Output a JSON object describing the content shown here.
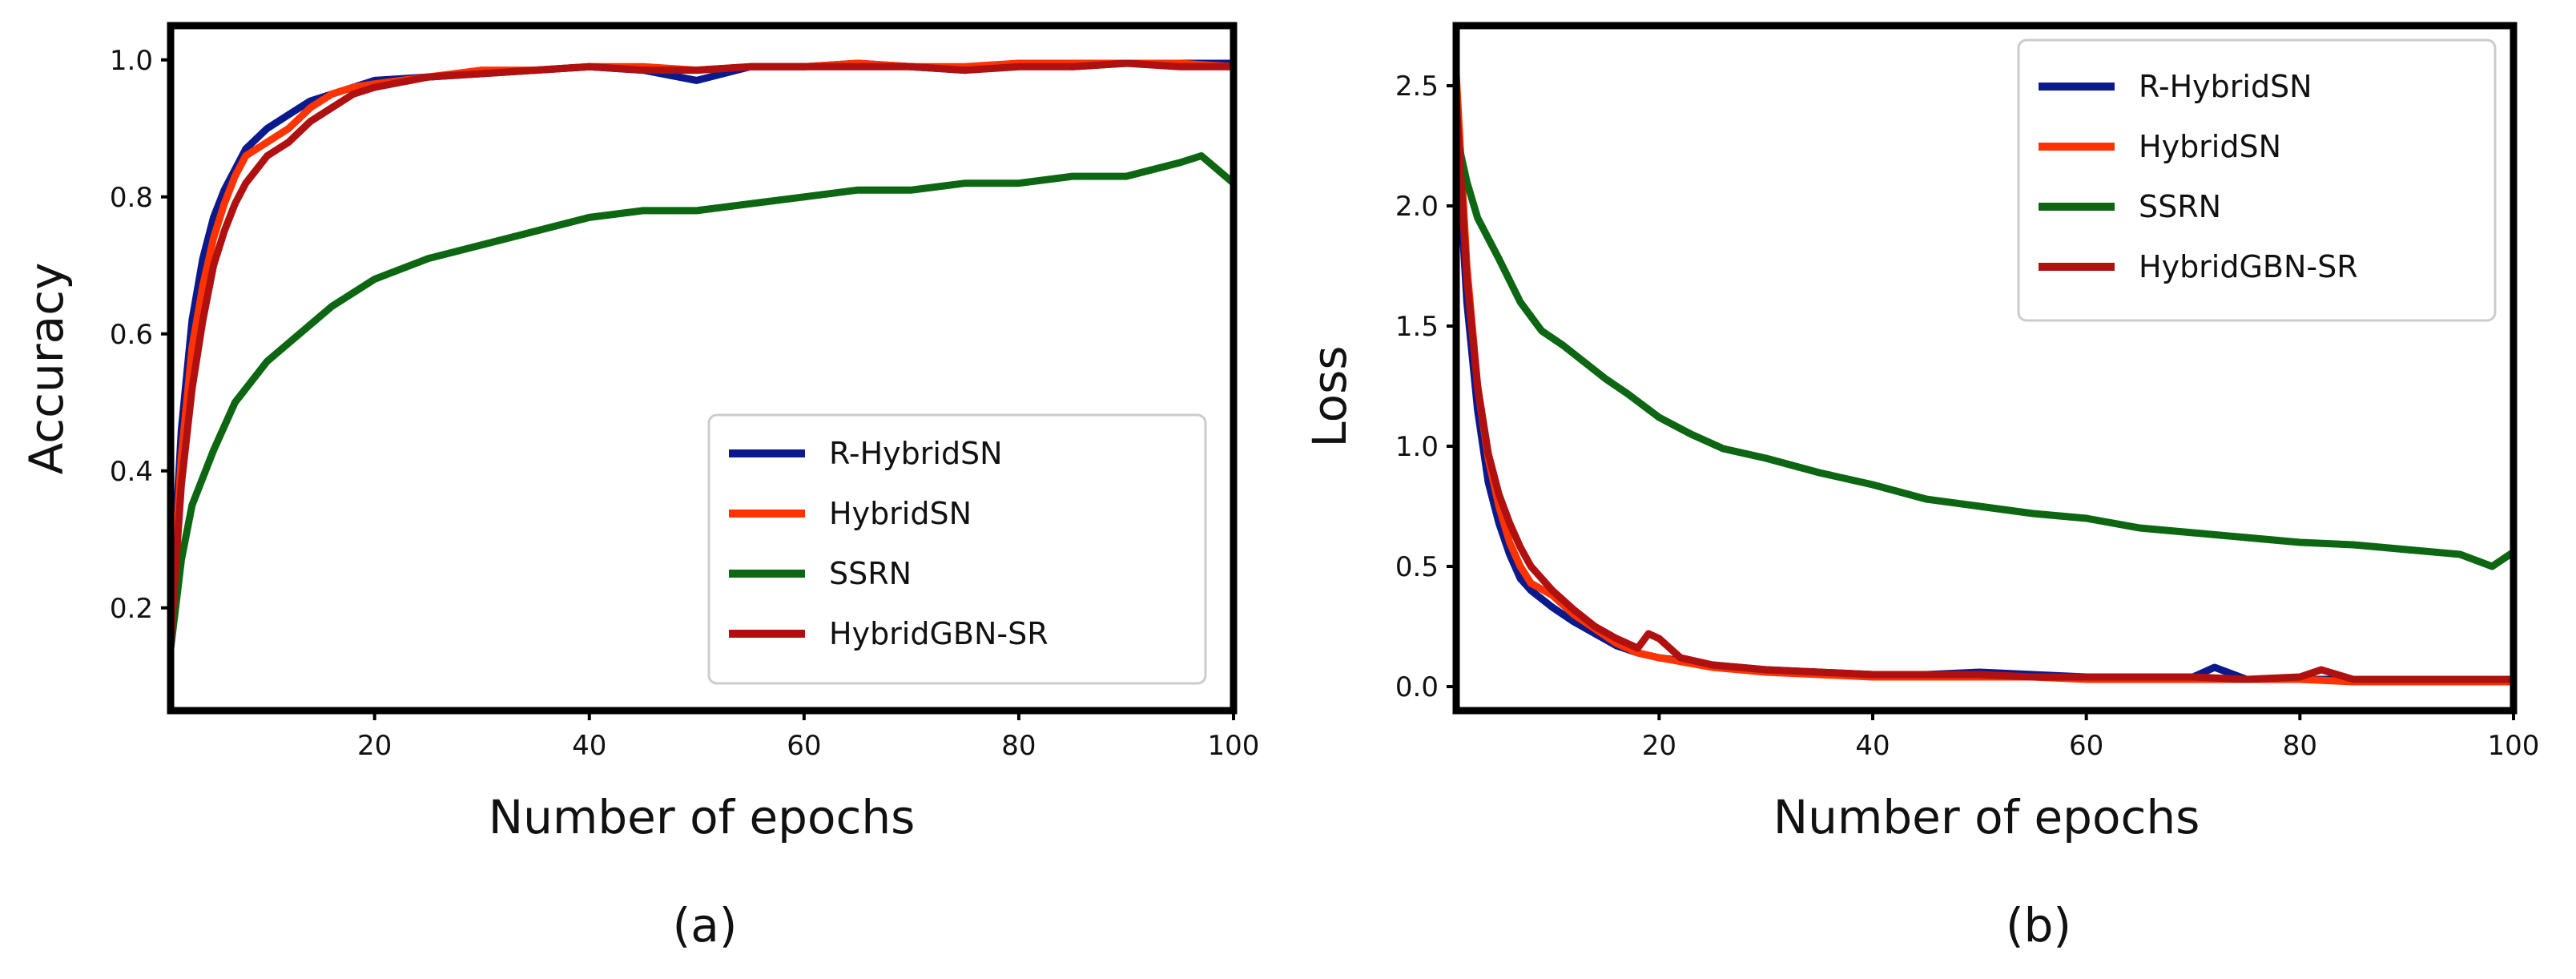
{
  "chart_data": [
    {
      "type": "line",
      "panel_label": "(a)",
      "title": "",
      "xlabel": "Number of epochs",
      "ylabel": "Accuracy",
      "xlim": [
        1,
        100
      ],
      "ylim": [
        0.05,
        1.05
      ],
      "xticks": [
        "20",
        "40",
        "60",
        "80",
        "100"
      ],
      "yticks": [
        "0.2",
        "0.4",
        "0.6",
        "0.8",
        "1.0"
      ],
      "legend_position": "lower-right",
      "grid": false,
      "series": [
        {
          "name": "R-HybridSN",
          "color": "#0a1a8c",
          "x": [
            1,
            2,
            3,
            4,
            5,
            6,
            7,
            8,
            10,
            12,
            14,
            16,
            18,
            20,
            25,
            30,
            35,
            40,
            45,
            50,
            55,
            60,
            65,
            70,
            75,
            80,
            85,
            90,
            95,
            100
          ],
          "y": [
            0.18,
            0.46,
            0.62,
            0.71,
            0.77,
            0.81,
            0.84,
            0.87,
            0.9,
            0.92,
            0.94,
            0.95,
            0.96,
            0.97,
            0.975,
            0.98,
            0.985,
            0.99,
            0.985,
            0.97,
            0.99,
            0.99,
            0.995,
            0.99,
            0.985,
            0.995,
            0.99,
            0.995,
            0.995,
            0.995
          ]
        },
        {
          "name": "HybridSN",
          "color": "#ff3300",
          "x": [
            1,
            2,
            3,
            4,
            5,
            6,
            7,
            8,
            10,
            12,
            14,
            16,
            18,
            20,
            25,
            30,
            35,
            40,
            45,
            50,
            55,
            60,
            65,
            70,
            75,
            80,
            85,
            90,
            95,
            100
          ],
          "y": [
            0.17,
            0.42,
            0.58,
            0.67,
            0.74,
            0.79,
            0.83,
            0.86,
            0.88,
            0.9,
            0.93,
            0.95,
            0.96,
            0.965,
            0.975,
            0.985,
            0.985,
            0.99,
            0.99,
            0.985,
            0.99,
            0.99,
            0.995,
            0.99,
            0.99,
            0.995,
            0.995,
            0.995,
            0.995,
            0.99
          ]
        },
        {
          "name": "SSRN",
          "color": "#0d6612",
          "x": [
            1,
            2,
            3,
            5,
            7,
            10,
            13,
            16,
            20,
            25,
            30,
            35,
            40,
            45,
            50,
            55,
            60,
            65,
            70,
            75,
            80,
            85,
            90,
            95,
            97,
            100
          ],
          "y": [
            0.14,
            0.27,
            0.35,
            0.43,
            0.5,
            0.56,
            0.6,
            0.64,
            0.68,
            0.71,
            0.73,
            0.75,
            0.77,
            0.78,
            0.78,
            0.79,
            0.8,
            0.81,
            0.81,
            0.82,
            0.82,
            0.83,
            0.83,
            0.85,
            0.86,
            0.82
          ]
        },
        {
          "name": "HybridGBN-SR",
          "color": "#b01010",
          "x": [
            1,
            2,
            3,
            4,
            5,
            6,
            7,
            8,
            10,
            12,
            14,
            16,
            18,
            20,
            25,
            30,
            35,
            40,
            45,
            50,
            55,
            60,
            65,
            70,
            75,
            80,
            85,
            90,
            95,
            100
          ],
          "y": [
            0.15,
            0.38,
            0.52,
            0.62,
            0.7,
            0.75,
            0.79,
            0.82,
            0.86,
            0.88,
            0.91,
            0.93,
            0.95,
            0.96,
            0.975,
            0.98,
            0.985,
            0.99,
            0.985,
            0.985,
            0.99,
            0.99,
            0.99,
            0.99,
            0.985,
            0.99,
            0.99,
            0.995,
            0.99,
            0.99
          ]
        }
      ]
    },
    {
      "type": "line",
      "panel_label": "(b)",
      "title": "",
      "xlabel": "Number of epochs",
      "ylabel": "Loss",
      "xlim": [
        1,
        100
      ],
      "ylim": [
        -0.1,
        2.75
      ],
      "xticks": [
        "20",
        "40",
        "60",
        "80",
        "100"
      ],
      "yticks": [
        "0.0",
        "0.5",
        "1.0",
        "1.5",
        "2.0",
        "2.5"
      ],
      "legend_position": "upper-right",
      "grid": false,
      "series": [
        {
          "name": "R-HybridSN",
          "color": "#0a1a8c",
          "x": [
            1,
            2,
            3,
            4,
            5,
            6,
            7,
            8,
            10,
            12,
            14,
            16,
            18,
            20,
            25,
            30,
            35,
            40,
            45,
            50,
            55,
            60,
            65,
            70,
            72,
            75,
            80,
            85,
            90,
            95,
            100
          ],
          "y": [
            2.35,
            1.6,
            1.15,
            0.85,
            0.68,
            0.55,
            0.45,
            0.4,
            0.33,
            0.27,
            0.22,
            0.17,
            0.14,
            0.12,
            0.09,
            0.07,
            0.06,
            0.05,
            0.05,
            0.06,
            0.05,
            0.04,
            0.04,
            0.04,
            0.08,
            0.03,
            0.03,
            0.03,
            0.03,
            0.03,
            0.02
          ]
        },
        {
          "name": "HybridSN",
          "color": "#ff3300",
          "x": [
            1,
            2,
            3,
            4,
            5,
            6,
            7,
            8,
            10,
            12,
            14,
            16,
            18,
            20,
            25,
            30,
            35,
            40,
            45,
            50,
            55,
            60,
            65,
            70,
            75,
            80,
            85,
            90,
            95,
            100
          ],
          "y": [
            2.55,
            1.75,
            1.25,
            0.95,
            0.75,
            0.6,
            0.5,
            0.43,
            0.38,
            0.3,
            0.24,
            0.18,
            0.14,
            0.12,
            0.08,
            0.06,
            0.05,
            0.04,
            0.04,
            0.04,
            0.04,
            0.03,
            0.03,
            0.03,
            0.03,
            0.03,
            0.02,
            0.02,
            0.02,
            0.02
          ]
        },
        {
          "name": "SSRN",
          "color": "#0d6612",
          "x": [
            1,
            2,
            3,
            5,
            7,
            9,
            11,
            13,
            15,
            17,
            20,
            23,
            26,
            30,
            35,
            40,
            45,
            50,
            55,
            60,
            65,
            70,
            75,
            80,
            85,
            90,
            95,
            98,
            100
          ],
          "y": [
            2.3,
            2.1,
            1.95,
            1.78,
            1.6,
            1.48,
            1.42,
            1.35,
            1.28,
            1.22,
            1.12,
            1.05,
            0.99,
            0.95,
            0.89,
            0.84,
            0.78,
            0.75,
            0.72,
            0.7,
            0.66,
            0.64,
            0.62,
            0.6,
            0.59,
            0.57,
            0.55,
            0.5,
            0.56
          ]
        },
        {
          "name": "HybridGBN-SR",
          "color": "#b01010",
          "x": [
            1,
            2,
            3,
            4,
            5,
            6,
            7,
            8,
            10,
            12,
            14,
            16,
            18,
            19,
            20,
            22,
            25,
            30,
            35,
            40,
            45,
            50,
            55,
            60,
            65,
            70,
            75,
            80,
            82,
            85,
            90,
            95,
            100
          ],
          "y": [
            2.45,
            1.7,
            1.25,
            0.97,
            0.8,
            0.68,
            0.58,
            0.5,
            0.4,
            0.32,
            0.25,
            0.2,
            0.16,
            0.22,
            0.2,
            0.12,
            0.09,
            0.07,
            0.06,
            0.05,
            0.05,
            0.05,
            0.04,
            0.04,
            0.04,
            0.04,
            0.03,
            0.04,
            0.07,
            0.03,
            0.03,
            0.03,
            0.03
          ]
        }
      ]
    }
  ]
}
